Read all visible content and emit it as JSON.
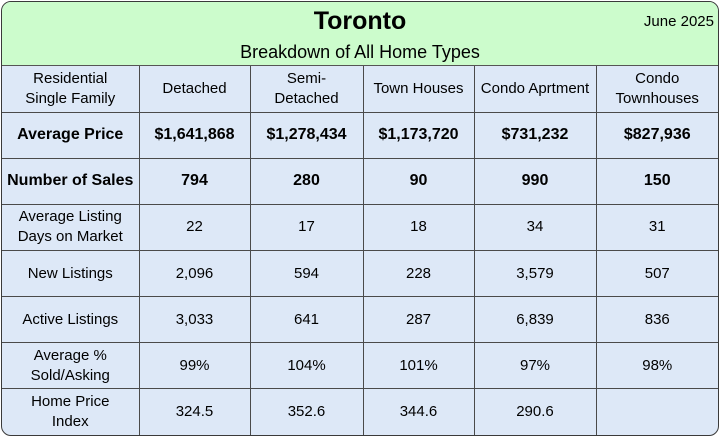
{
  "header": {
    "title": "Toronto",
    "date": "June 2025",
    "subtitle": "Breakdown of All Home Types"
  },
  "columns": [
    [
      "Residential",
      "Single Family"
    ],
    [
      "Detached"
    ],
    [
      "Semi-",
      "Detached"
    ],
    [
      "Town Houses"
    ],
    [
      "Condo Aprtment"
    ],
    [
      "Condo",
      "Townhouses"
    ]
  ],
  "rows": [
    {
      "label": [
        "Average Price"
      ],
      "bold": true,
      "values": [
        "$1,641,868",
        "$1,278,434",
        "$1,173,720",
        "$731,232",
        "$827,936"
      ]
    },
    {
      "label": [
        "Number of Sales"
      ],
      "bold": true,
      "values": [
        "794",
        "280",
        "90",
        "990",
        "150"
      ]
    },
    {
      "label": [
        "Average Listing",
        "Days on Market"
      ],
      "bold": false,
      "values": [
        "22",
        "17",
        "18",
        "34",
        "31"
      ]
    },
    {
      "label": [
        "New Listings"
      ],
      "bold": false,
      "values": [
        "2,096",
        "594",
        "228",
        "3,579",
        "507"
      ]
    },
    {
      "label": [
        "Active Listings"
      ],
      "bold": false,
      "values": [
        "3,033",
        "641",
        "287",
        "6,839",
        "836"
      ]
    },
    {
      "label": [
        "Average %",
        "Sold/Asking"
      ],
      "bold": false,
      "values": [
        "99%",
        "104%",
        "101%",
        "97%",
        "98%"
      ]
    },
    {
      "label": [
        "Home Price",
        "Index"
      ],
      "bold": false,
      "values": [
        "324.5",
        "352.6",
        "344.6",
        "290.6",
        ""
      ]
    }
  ]
}
